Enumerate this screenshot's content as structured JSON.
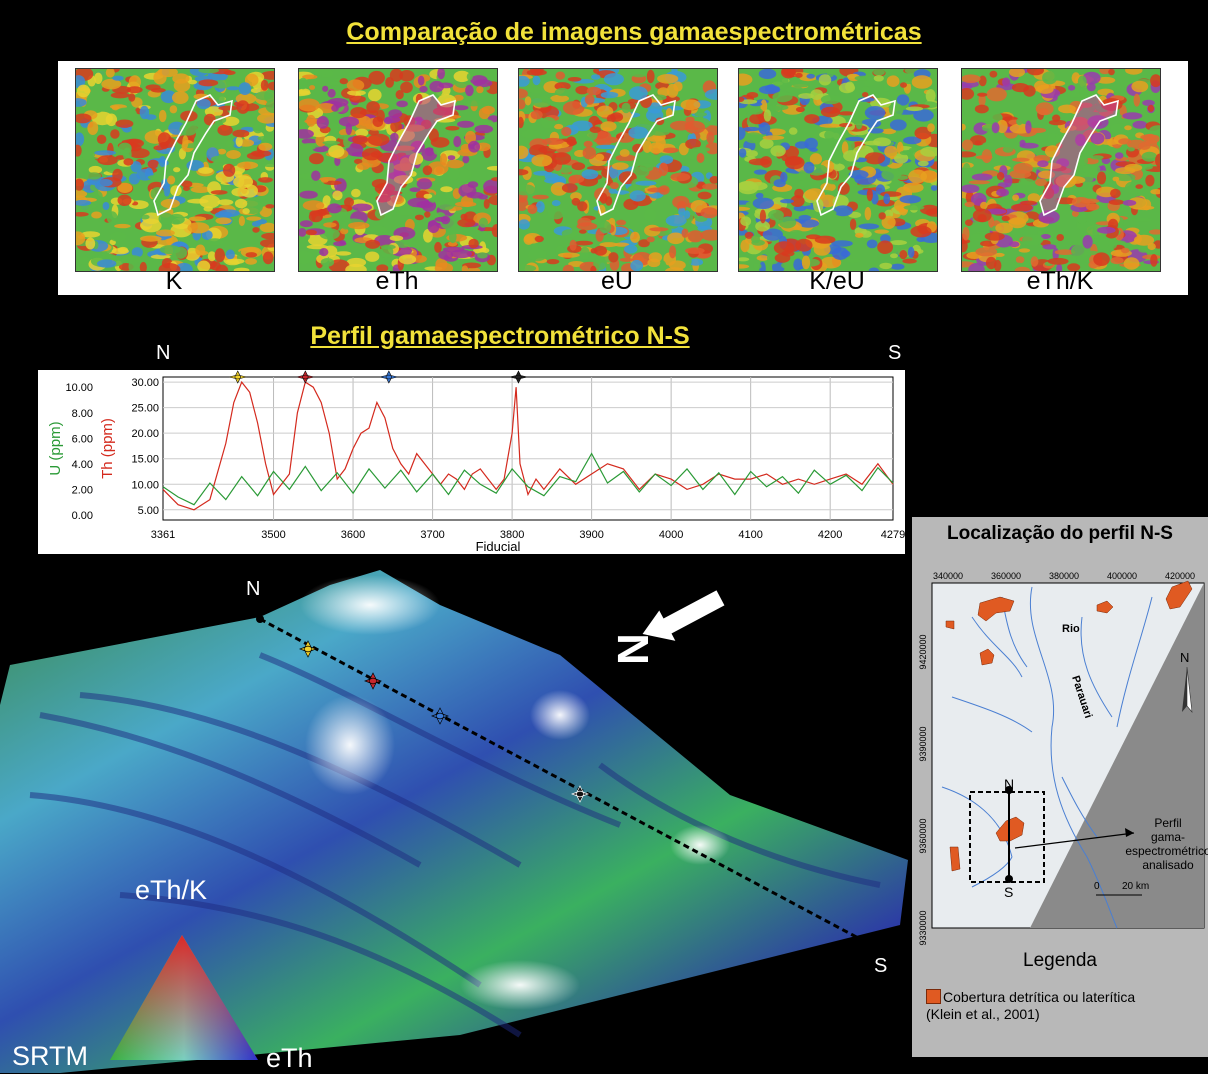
{
  "main_title": "Comparação de imagens gamaespectrométricas",
  "maps": [
    {
      "label": "K"
    },
    {
      "label": "eTh"
    },
    {
      "label": "eU"
    },
    {
      "label": "K/eU"
    },
    {
      "label": "eTh/K"
    }
  ],
  "profile_title": "Perfil gamaespectrométrico N-S",
  "profile_n": "N",
  "profile_s": "S",
  "chart_data": {
    "type": "line",
    "xlabel": "Fiducial",
    "x_ticks": [
      "3361",
      "3500",
      "3600",
      "3700",
      "3800",
      "3900",
      "4000",
      "4100",
      "4200",
      "4279"
    ],
    "y_left_label": "U (ppm)",
    "y_left_ticks": [
      "0.00",
      "2.00",
      "4.00",
      "6.00",
      "8.00",
      "10.00"
    ],
    "y_right_label": "Th (ppm)",
    "y_right_ticks": [
      "5.00",
      "10.00",
      "15.00",
      "20.00",
      "25.00",
      "30.00"
    ],
    "xlim": [
      3361,
      4279
    ],
    "series": [
      {
        "name": "Th (ppm)",
        "color": "#d42a1e",
        "axis": "Th",
        "x": [
          3361,
          3380,
          3400,
          3420,
          3440,
          3450,
          3460,
          3470,
          3480,
          3490,
          3500,
          3510,
          3520,
          3530,
          3540,
          3550,
          3560,
          3570,
          3580,
          3590,
          3600,
          3610,
          3620,
          3630,
          3640,
          3650,
          3660,
          3670,
          3680,
          3690,
          3700,
          3710,
          3720,
          3730,
          3740,
          3750,
          3760,
          3770,
          3780,
          3790,
          3800,
          3805,
          3810,
          3820,
          3830,
          3840,
          3860,
          3880,
          3900,
          3920,
          3940,
          3960,
          3980,
          4000,
          4020,
          4040,
          4060,
          4080,
          4100,
          4120,
          4140,
          4160,
          4180,
          4200,
          4220,
          4240,
          4260,
          4279
        ],
        "y": [
          9,
          6,
          5,
          7,
          18,
          26,
          30,
          28,
          22,
          14,
          8,
          10,
          12,
          24,
          30,
          29,
          26,
          20,
          11,
          13,
          17,
          20,
          21,
          26,
          23,
          17,
          14,
          12,
          16,
          14,
          12,
          10,
          12,
          11,
          9,
          12,
          13,
          11,
          9,
          11,
          20,
          29,
          14,
          8,
          11,
          9,
          13,
          10,
          12,
          14,
          13,
          9,
          12,
          11,
          9,
          10,
          12,
          11,
          11,
          12,
          10,
          11,
          10,
          11,
          12,
          10,
          14,
          10
        ]
      },
      {
        "name": "U (ppm)",
        "color": "#2a9a36",
        "axis": "U",
        "x": [
          3361,
          3380,
          3400,
          3420,
          3440,
          3460,
          3480,
          3500,
          3520,
          3540,
          3560,
          3580,
          3600,
          3620,
          3640,
          3660,
          3680,
          3700,
          3720,
          3740,
          3760,
          3780,
          3800,
          3820,
          3840,
          3860,
          3880,
          3900,
          3920,
          3940,
          3960,
          3980,
          4000,
          4020,
          4040,
          4060,
          4080,
          4100,
          4120,
          4140,
          4160,
          4180,
          4200,
          4220,
          4240,
          4260,
          4279
        ],
        "y": [
          2.2,
          1.4,
          0.8,
          2.5,
          1.2,
          3.0,
          1.5,
          3.4,
          2.0,
          3.8,
          1.9,
          3.3,
          1.7,
          3.6,
          2.1,
          3.5,
          1.8,
          3.2,
          1.6,
          3.5,
          2.4,
          1.7,
          3.6,
          2.2,
          1.5,
          3.0,
          2.6,
          4.8,
          2.5,
          3.4,
          1.8,
          3.2,
          2.3,
          3.6,
          2.0,
          3.3,
          1.6,
          3.4,
          2.2,
          3.0,
          1.7,
          3.5,
          2.4,
          3.1,
          1.9,
          3.7,
          2.5
        ]
      }
    ],
    "markers": [
      {
        "x": 3455,
        "color": "#f2d22a"
      },
      {
        "x": 3540,
        "color": "#c8282e"
      },
      {
        "x": 3645,
        "color": "#3a7ad6"
      },
      {
        "x": 3808,
        "color": "#222222"
      }
    ]
  },
  "terrain_n": "N",
  "terrain_s": "S",
  "ternary": {
    "top": "eTh/K",
    "left": "SRTM",
    "right": "eTh"
  },
  "location": {
    "title": "Localização do perfil N-S",
    "x_ticks": [
      "340000",
      "360000",
      "380000",
      "400000",
      "420000"
    ],
    "y_ticks": [
      "9420000",
      "9390000",
      "9360000",
      "9330000"
    ],
    "river_label_1": "Rio",
    "river_label_2": "Parauari",
    "north": "N",
    "profile_n": "N",
    "profile_s": "S",
    "callout": "Perfil\ngama-\nespectrométrico\nanalisado",
    "scale_0": "0",
    "scale_20": "20 km",
    "legend_title": "Legenda",
    "legend_line1": "Cobertura detrítica ou laterítica",
    "legend_line2": "(Klein et al., 2001)"
  }
}
